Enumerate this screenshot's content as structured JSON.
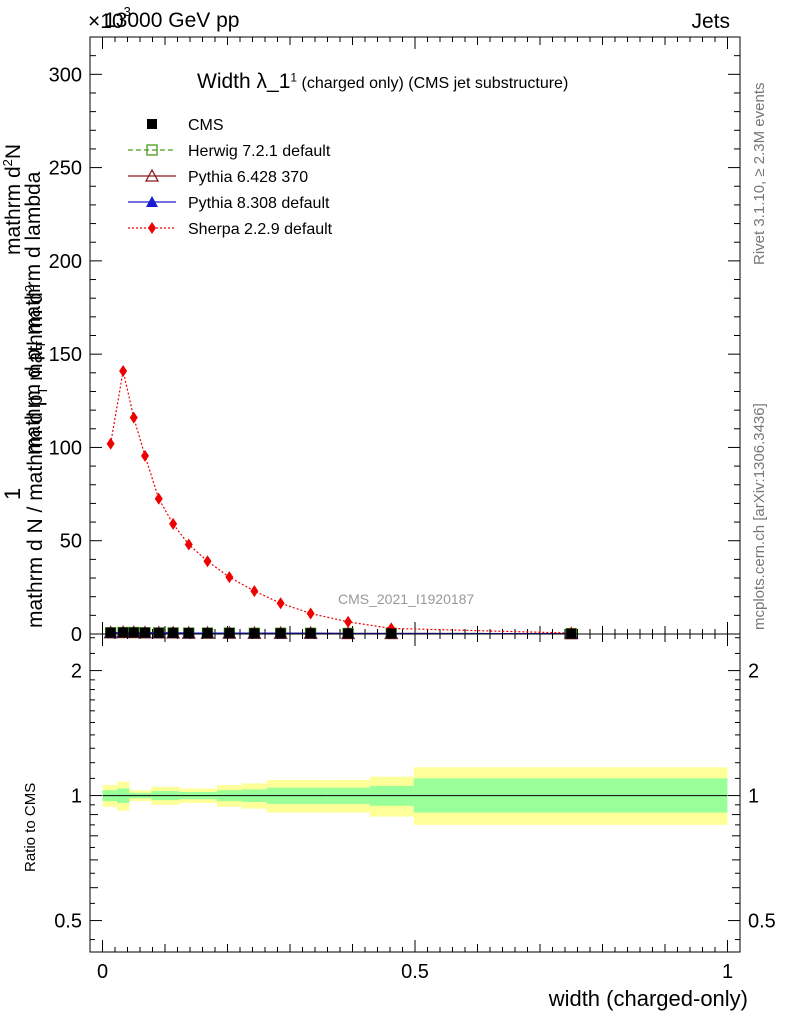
{
  "header": {
    "energy_label": "13000 GeV pp",
    "exponent_label": "×10",
    "exponent_power": "3",
    "category_label": "Jets"
  },
  "side_labels": {
    "rivet": "Rivet 3.1.10, ≥ 2.3M events",
    "mcplots": "mcplots.cern.ch [arXiv:1306.3436]"
  },
  "chart_data": [
    {
      "type": "line",
      "title": "Width λ_1",
      "title_superscript": "1",
      "title_suffix": "(charged only) (CMS jet substructure)",
      "watermark": "CMS_2021_I1920187",
      "ylabel_parts": {
        "prefix": "1",
        "denominator": "mathrm d N / mathrm d p",
        "subscript_T": "T",
        "numerator": "mathrm d",
        "numerator_power": "2",
        "numerator_N": "N",
        "lower_line": "mathrm d p",
        "lower_line_2": "mathrm d lambda"
      },
      "ylabel_lines": [
        "1",
        "mathrm d N / mathrm d p_T",
        "mathrm d²N",
        "mathrm d p_T mathrm d lambda"
      ],
      "xlim": [
        -0.02,
        1.02
      ],
      "ylim": [
        0,
        320
      ],
      "y_scale_factor": 1000,
      "yticks": [
        0,
        50,
        100,
        150,
        200,
        250,
        300
      ],
      "ytick_labels": [
        "0",
        "50",
        "100",
        "150",
        "200",
        "250",
        "300"
      ],
      "legend_position": "top-left",
      "series": [
        {
          "name": "CMS",
          "color": "#000000",
          "marker": "square-filled",
          "x": [
            0.013,
            0.033,
            0.05,
            0.068,
            0.09,
            0.113,
            0.138,
            0.168,
            0.203,
            0.243,
            0.285,
            0.333,
            0.393,
            0.462,
            0.75
          ],
          "y": [
            0.7,
            0.8,
            0.8,
            0.7,
            0.6,
            0.6,
            0.5,
            0.5,
            0.5,
            0.4,
            0.4,
            0.4,
            0.3,
            0.3,
            0.2
          ]
        },
        {
          "name": "Herwig 7.2.1 default",
          "color": "#4a9a1a",
          "marker": "square-open",
          "line": "dashed",
          "x": [
            0.013,
            0.033,
            0.05,
            0.068,
            0.09,
            0.113,
            0.138,
            0.168,
            0.203,
            0.243,
            0.285,
            0.333,
            0.393,
            0.462,
            0.75
          ],
          "y": [
            0.7,
            0.8,
            0.8,
            0.7,
            0.6,
            0.6,
            0.5,
            0.5,
            0.5,
            0.4,
            0.4,
            0.4,
            0.3,
            0.3,
            0.2
          ]
        },
        {
          "name": "Pythia 6.428 370",
          "color": "#8b1a1a",
          "marker": "triangle-open",
          "line": "solid",
          "x": [
            0.013,
            0.033,
            0.05,
            0.068,
            0.09,
            0.113,
            0.138,
            0.168,
            0.203,
            0.243,
            0.285,
            0.333,
            0.393,
            0.462,
            0.75
          ],
          "y": [
            0.7,
            0.8,
            0.8,
            0.7,
            0.6,
            0.6,
            0.5,
            0.5,
            0.5,
            0.4,
            0.4,
            0.4,
            0.3,
            0.3,
            0.2
          ]
        },
        {
          "name": "Pythia 8.308 default",
          "color": "#1a1acc",
          "marker": "triangle-filled",
          "line": "solid",
          "x": [
            0.013,
            0.033,
            0.05,
            0.068,
            0.09,
            0.113,
            0.138,
            0.168,
            0.203,
            0.243,
            0.285,
            0.333,
            0.393,
            0.462,
            0.75
          ],
          "y": [
            0.7,
            0.8,
            0.8,
            0.7,
            0.6,
            0.6,
            0.5,
            0.5,
            0.5,
            0.4,
            0.4,
            0.4,
            0.3,
            0.3,
            0.2
          ]
        },
        {
          "name": "Sherpa 2.2.9 default",
          "color": "#ee0000",
          "marker": "diamond-filled",
          "line": "dotted",
          "x": [
            0.013,
            0.033,
            0.05,
            0.068,
            0.09,
            0.113,
            0.138,
            0.168,
            0.203,
            0.243,
            0.285,
            0.333,
            0.393,
            0.462,
            0.75
          ],
          "y": [
            102,
            141,
            116,
            95.5,
            72.5,
            59,
            48,
            39,
            30.5,
            23,
            16.5,
            11,
            6.5,
            3,
            0.5
          ]
        }
      ]
    },
    {
      "type": "area",
      "ylabel": "Ratio to CMS",
      "xlabel": "width (charged-only)",
      "xlim": [
        -0.02,
        1.02
      ],
      "ylim": [
        0.42,
        2.45
      ],
      "y_scale": "log",
      "yticks": [
        0.5,
        1,
        2
      ],
      "ytick_labels": [
        "0.5",
        "1",
        "2"
      ],
      "xticks": [
        0,
        0.5,
        1
      ],
      "xtick_labels": [
        "0",
        "0.5",
        "1"
      ],
      "reference_line": 1,
      "bins": [
        0,
        0.023,
        0.043,
        0.058,
        0.078,
        0.103,
        0.123,
        0.153,
        0.183,
        0.223,
        0.263,
        0.308,
        0.358,
        0.428,
        0.498,
        1.0
      ],
      "stat_band": {
        "color": "#99ff99",
        "lower": [
          0.97,
          0.96,
          0.985,
          0.985,
          0.975,
          0.975,
          0.98,
          0.98,
          0.97,
          0.965,
          0.955,
          0.955,
          0.955,
          0.945,
          0.91
        ],
        "upper": [
          1.03,
          1.04,
          1.015,
          1.015,
          1.025,
          1.025,
          1.02,
          1.02,
          1.03,
          1.035,
          1.045,
          1.045,
          1.045,
          1.055,
          1.1
        ]
      },
      "total_band": {
        "color": "#ffff99",
        "lower": [
          0.94,
          0.92,
          0.97,
          0.97,
          0.95,
          0.95,
          0.96,
          0.96,
          0.94,
          0.93,
          0.91,
          0.91,
          0.91,
          0.89,
          0.85
        ],
        "upper": [
          1.06,
          1.08,
          1.03,
          1.03,
          1.05,
          1.05,
          1.04,
          1.04,
          1.06,
          1.07,
          1.09,
          1.09,
          1.09,
          1.11,
          1.17
        ]
      }
    }
  ]
}
